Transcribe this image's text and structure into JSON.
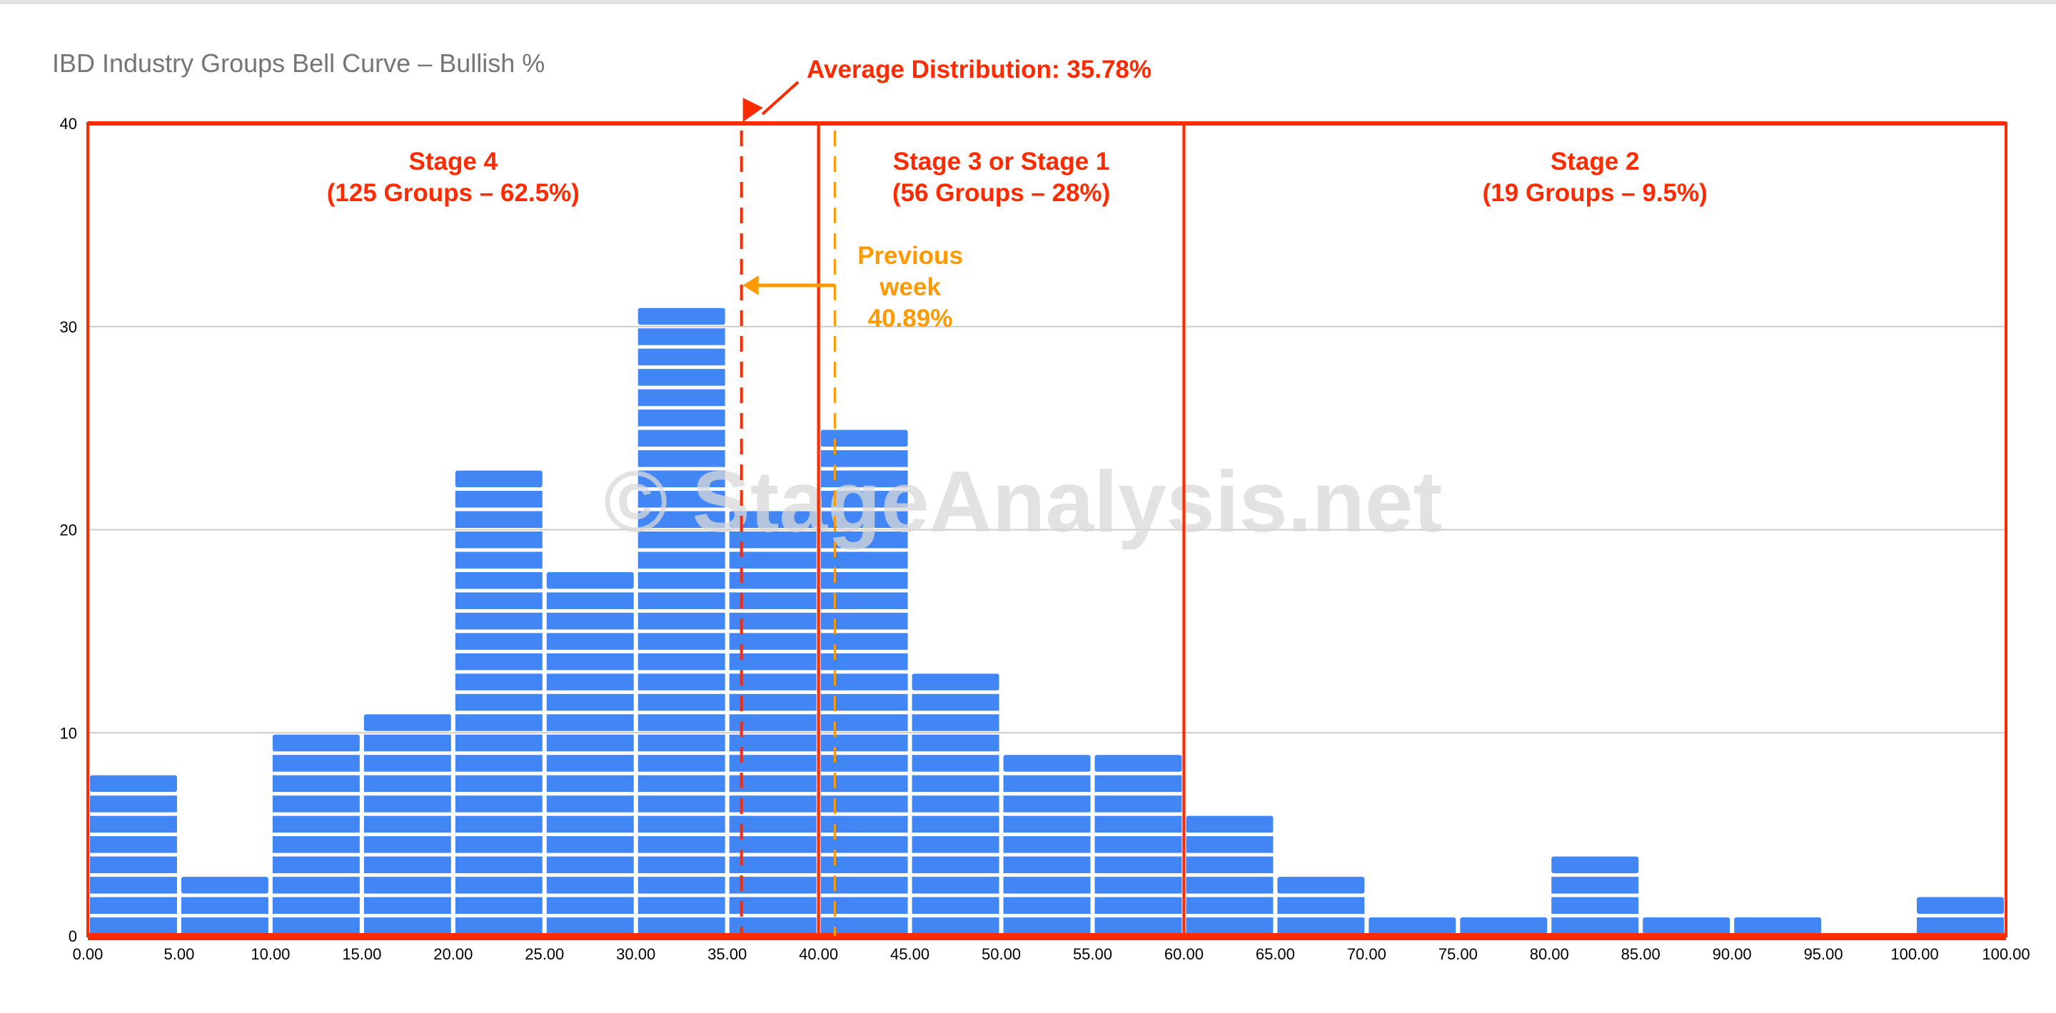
{
  "chart_data": {
    "type": "bar",
    "title": "IBD Industry Groups Bell Curve – Bullish %",
    "categories": [
      "0.00",
      "5.00",
      "10.00",
      "15.00",
      "20.00",
      "25.00",
      "30.00",
      "35.00",
      "40.00",
      "45.00",
      "50.00",
      "55.00",
      "60.00",
      "65.00",
      "70.00",
      "75.00",
      "80.00",
      "85.00",
      "90.00",
      "95.00",
      "100.00"
    ],
    "x_tick_labels": [
      "0.00",
      "5.00",
      "10.00",
      "15.00",
      "20.00",
      "25.00",
      "30.00",
      "35.00",
      "40.00",
      "45.00",
      "50.00",
      "55.00",
      "60.00",
      "65.00",
      "70.00",
      "75.00",
      "80.00",
      "85.00",
      "90.00",
      "95.00",
      "100.00",
      "100.00"
    ],
    "values": [
      8,
      3,
      10,
      11,
      23,
      18,
      31,
      21,
      25,
      13,
      9,
      9,
      6,
      3,
      1,
      1,
      4,
      1,
      1,
      0,
      2
    ],
    "ylim": [
      0,
      40
    ],
    "y_ticks": [
      0,
      10,
      20,
      30,
      40
    ],
    "grid": true,
    "xlabel": "",
    "ylabel": "",
    "bar_color": "#4285F4",
    "annotations": {
      "average": {
        "label": "Average Distribution: 35.78%",
        "value": 35.78,
        "color": "#FF2A00"
      },
      "previous_week": {
        "lines": [
          "Previous",
          "week",
          "40.89%"
        ],
        "value": 40.89,
        "color": "#FF9900"
      },
      "stages": [
        {
          "lines": [
            "Stage 4",
            "(125 Groups – 62.5%)"
          ],
          "range": [
            0,
            40
          ]
        },
        {
          "lines": [
            "Stage 3 or Stage 1",
            "(56 Groups – 28%)"
          ],
          "range": [
            40,
            60
          ]
        },
        {
          "lines": [
            "Stage 2",
            "(19 Groups – 9.5%)"
          ],
          "range": [
            60,
            105
          ]
        }
      ],
      "stage_color": "#FF2A00"
    },
    "watermark": "© StageAnalysis.net"
  }
}
